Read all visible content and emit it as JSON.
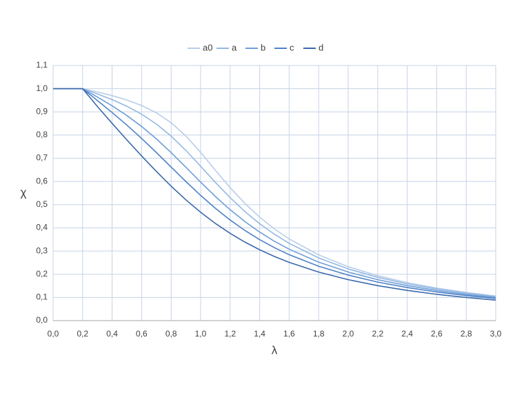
{
  "chart_data": {
    "type": "line",
    "x_label": "λ",
    "y_label": "χ",
    "x": [
      0,
      0.2,
      0.3,
      0.4,
      0.5,
      0.6,
      0.7,
      0.8,
      0.9,
      1.0,
      1.1,
      1.2,
      1.3,
      1.4,
      1.5,
      1.6,
      1.8,
      2.0,
      2.2,
      2.4,
      2.6,
      2.8,
      3.0
    ],
    "series": [
      {
        "name": "a0",
        "color": "#b6cdea",
        "values": [
          1,
          1,
          0.9859,
          0.9701,
          0.9513,
          0.9276,
          0.8961,
          0.8533,
          0.7961,
          0.7253,
          0.6482,
          0.5732,
          0.5053,
          0.4461,
          0.3953,
          0.352,
          0.2833,
          0.2323,
          0.1937,
          0.1639,
          0.1404,
          0.1216,
          0.1063
        ]
      },
      {
        "name": "a",
        "color": "#93b7e2",
        "values": [
          1,
          1,
          0.9775,
          0.9528,
          0.9243,
          0.89,
          0.8477,
          0.7957,
          0.7339,
          0.6656,
          0.596,
          0.53,
          0.4703,
          0.4179,
          0.3724,
          0.3332,
          0.2702,
          0.2229,
          0.1867,
          0.1585,
          0.1362,
          0.1182,
          0.1036
        ]
      },
      {
        "name": "b",
        "color": "#6c9dd7",
        "values": [
          1,
          1,
          0.9641,
          0.9261,
          0.8842,
          0.8371,
          0.7837,
          0.7245,
          0.6612,
          0.597,
          0.5352,
          0.4781,
          0.4269,
          0.3817,
          0.3422,
          0.3079,
          0.2521,
          0.2095,
          0.1765,
          0.1506,
          0.1299,
          0.1132,
          0.0994
        ]
      },
      {
        "name": "c",
        "color": "#4c80c6",
        "values": [
          1,
          1,
          0.9491,
          0.8973,
          0.843,
          0.7854,
          0.7247,
          0.6622,
          0.5998,
          0.5399,
          0.4843,
          0.4338,
          0.3888,
          0.3492,
          0.3145,
          0.2842,
          0.2345,
          0.1962,
          0.1662,
          0.1425,
          0.1234,
          0.1079,
          0.0951
        ]
      },
      {
        "name": "d",
        "color": "#3a68aa",
        "values": [
          1,
          1,
          0.9235,
          0.8504,
          0.7793,
          0.71,
          0.6431,
          0.5797,
          0.5208,
          0.4671,
          0.4189,
          0.3762,
          0.3385,
          0.3055,
          0.2766,
          0.2512,
          0.2093,
          0.1766,
          0.1508,
          0.1302,
          0.1134,
          0.0997,
          0.0882
        ]
      }
    ],
    "xlim": [
      0,
      3.0
    ],
    "ylim": [
      0,
      1.1
    ],
    "xticks": [
      {
        "value": 0,
        "label": "0,0"
      },
      {
        "value": 0.2,
        "label": "0,2"
      },
      {
        "value": 0.4,
        "label": "0,4"
      },
      {
        "value": 0.6,
        "label": "0,6"
      },
      {
        "value": 0.8,
        "label": "0,8"
      },
      {
        "value": 1.0,
        "label": "1,0"
      },
      {
        "value": 1.2,
        "label": "1,2"
      },
      {
        "value": 1.4,
        "label": "1,4"
      },
      {
        "value": 1.6,
        "label": "1,6"
      },
      {
        "value": 1.8,
        "label": "1,8"
      },
      {
        "value": 2.0,
        "label": "2,0"
      },
      {
        "value": 2.2,
        "label": "2,2"
      },
      {
        "value": 2.4,
        "label": "2,4"
      },
      {
        "value": 2.6,
        "label": "2,6"
      },
      {
        "value": 2.8,
        "label": "2,8"
      },
      {
        "value": 3.0,
        "label": "3,0"
      }
    ],
    "yticks": [
      {
        "value": 0,
        "label": "0,0"
      },
      {
        "value": 0.1,
        "label": "0,1"
      },
      {
        "value": 0.2,
        "label": "0,2"
      },
      {
        "value": 0.3,
        "label": "0,3"
      },
      {
        "value": 0.4,
        "label": "0,4"
      },
      {
        "value": 0.5,
        "label": "0,5"
      },
      {
        "value": 0.6,
        "label": "0,6"
      },
      {
        "value": 0.7,
        "label": "0,7"
      },
      {
        "value": 0.8,
        "label": "0,8"
      },
      {
        "value": 0.9,
        "label": "0,9"
      },
      {
        "value": 1.0,
        "label": "1,0"
      },
      {
        "value": 1.1,
        "label": "1,1"
      }
    ],
    "grid": true,
    "legend": "top"
  }
}
